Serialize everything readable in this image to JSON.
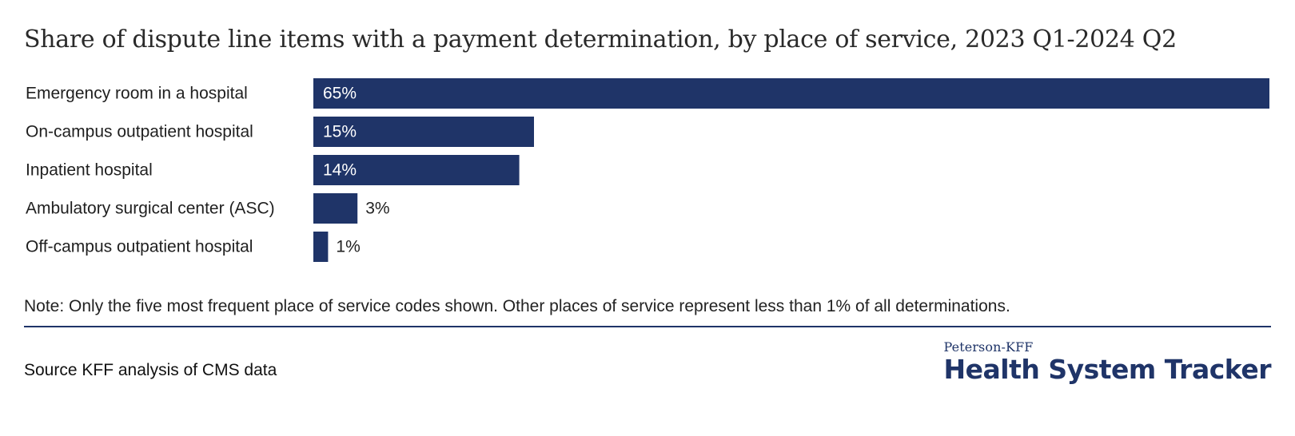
{
  "title": "Share of dispute line items with a payment determination, by place of service, 2023 Q1-2024 Q2",
  "note": "Note: Only the five most frequent place of service codes shown. Other places of service represent less than 1% of all determinations.",
  "source": "Source KFF analysis of CMS data",
  "brand": {
    "small": "Peterson-KFF",
    "large": "Health System Tracker"
  },
  "colors": {
    "bar": "#1f3468",
    "label_inside": "#ffffff",
    "label_outside": "#222222",
    "category_text": "#1f1f1f"
  },
  "chart_data": {
    "type": "bar",
    "orientation": "horizontal",
    "categories": [
      "Emergency room in a hospital",
      "On-campus outpatient hospital",
      "Inpatient hospital",
      "Ambulatory surgical center (ASC)",
      "Off-campus outpatient hospital"
    ],
    "values": [
      65,
      15,
      14,
      3,
      1
    ],
    "value_labels": [
      "65%",
      "15%",
      "14%",
      "3%",
      "1%"
    ],
    "unit": "%",
    "xlim": [
      0,
      65
    ],
    "grid": false,
    "legend": "none"
  }
}
